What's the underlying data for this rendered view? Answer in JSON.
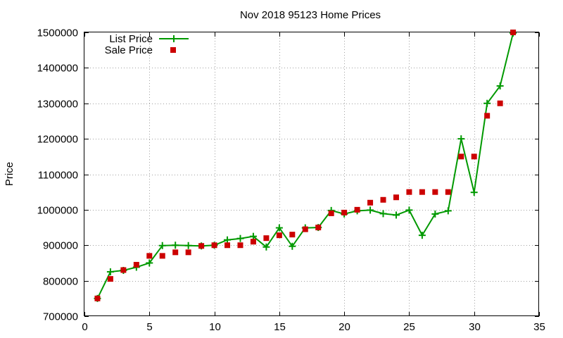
{
  "chart_data": {
    "type": "line",
    "title": "Nov 2018 95123 Home Prices",
    "xlabel": "",
    "ylabel": "Price",
    "xlim": [
      0,
      35
    ],
    "ylim": [
      700000,
      1500000
    ],
    "x_ticks": [
      0,
      5,
      10,
      15,
      20,
      25,
      30,
      35
    ],
    "y_ticks": [
      700000,
      800000,
      900000,
      1000000,
      1100000,
      1200000,
      1300000,
      1400000,
      1500000
    ],
    "grid": true,
    "legend_position": "top-left",
    "series": [
      {
        "name": "List Price",
        "style": "line+cross",
        "color": "#009900",
        "x": [
          1,
          2,
          3,
          4,
          5,
          6,
          7,
          8,
          9,
          10,
          11,
          12,
          13,
          14,
          15,
          16,
          17,
          18,
          19,
          20,
          21,
          22,
          23,
          24,
          25,
          26,
          27,
          28,
          29,
          30,
          31,
          32,
          33
        ],
        "values": [
          750000,
          825000,
          829000,
          838000,
          850000,
          899000,
          900000,
          899000,
          898000,
          900000,
          915000,
          919000,
          925000,
          895000,
          949000,
          897000,
          949000,
          950000,
          998000,
          988000,
          997000,
          999000,
          989000,
          985000,
          999000,
          928000,
          988000,
          997000,
          1200000,
          1049000,
          1300000,
          1349000,
          1498000
        ]
      },
      {
        "name": "Sale Price",
        "style": "square",
        "color": "#cc0000",
        "x": [
          1,
          2,
          3,
          4,
          5,
          6,
          7,
          8,
          9,
          10,
          11,
          12,
          13,
          14,
          15,
          16,
          17,
          18,
          19,
          20,
          21,
          22,
          23,
          24,
          25,
          26,
          27,
          28,
          29,
          30,
          31,
          32,
          33
        ],
        "values": [
          750000,
          805000,
          830000,
          845000,
          870000,
          870000,
          880000,
          880000,
          898000,
          900000,
          900000,
          900000,
          910000,
          920000,
          928000,
          930000,
          945000,
          950000,
          990000,
          992000,
          1000000,
          1020000,
          1028000,
          1035000,
          1050000,
          1050000,
          1050000,
          1050000,
          1150000,
          1150000,
          1265000,
          1300000,
          1500000
        ]
      }
    ]
  }
}
